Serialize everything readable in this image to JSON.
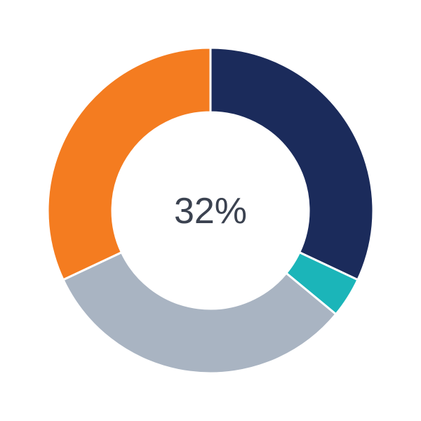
{
  "chart_data": {
    "type": "pie",
    "donut": true,
    "center_label": "32%",
    "slices": [
      {
        "value": 32,
        "color": "#1b2b5b"
      },
      {
        "value": 4,
        "color": "#1bb5b9"
      },
      {
        "value": 32,
        "color": "#a9b4c2"
      },
      {
        "value": 32,
        "color": "#f47c20"
      }
    ],
    "start": "top",
    "direction": "clockwise",
    "separator_color": "#ffffff"
  }
}
